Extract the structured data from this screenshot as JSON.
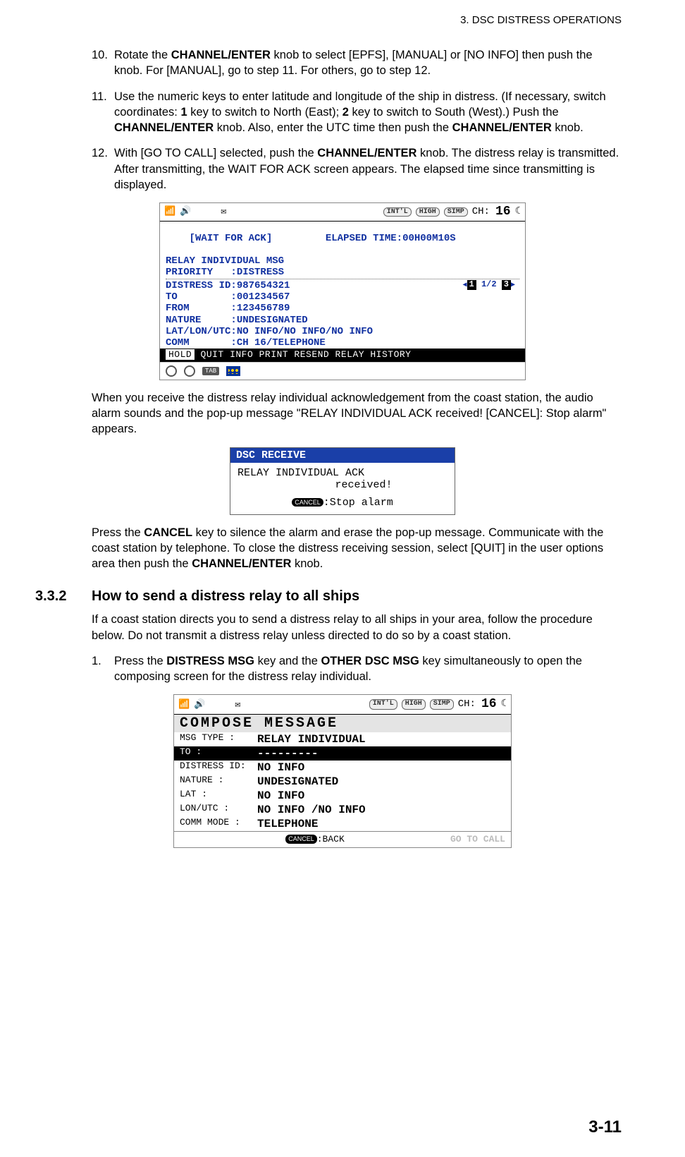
{
  "header": "3.  DSC DISTRESS OPERATIONS",
  "page_number": "3-11",
  "steps_a": [
    {
      "n": "10.",
      "html": "Rotate the <b>CHANNEL/ENTER</b> knob to select [EPFS], [MANUAL] or [NO INFO] then push the knob. For [MANUAL], go to step 11. For others, go to step 12."
    },
    {
      "n": "11.",
      "html": "Use the numeric keys to enter latitude and longitude of the ship in distress. (If necessary, switch coordinates: <b>1</b> key to switch to North (East); <b>2</b> key to switch to South (West).) Push the <b>CHANNEL/ENTER</b> knob. Also, enter the UTC time then push the <b>CHANNEL/ENTER</b> knob."
    },
    {
      "n": "12.",
      "html": "With [GO TO CALL] selected, push the <b>CHANNEL/ENTER</b> knob. The distress relay is transmitted. After transmitting, the WAIT FOR ACK screen appears. The elapsed time since transmitting is displayed."
    }
  ],
  "para_after_dev1": "When you receive the distress relay individual acknowledgement from the coast station, the audio alarm sounds and the pop-up message \"RELAY INDIVIDUAL ACK received! [CANCEL]: Stop alarm\" appears.",
  "para_after_popup": "Press the <b>CANCEL</b> key to silence the alarm and erase the pop-up message. Communicate with the coast station by telephone. To close the distress receiving session, select [QUIT] in the user options area then push the <b>CHANNEL/ENTER</b> knob.",
  "section": {
    "num": "3.3.2",
    "title": "How to send a distress relay to all ships"
  },
  "section_intro": "If a coast station directs you to send a distress relay to all ships in your area, follow the procedure below. Do not transmit a distress relay unless directed to do so by a coast station.",
  "steps_b": [
    {
      "n": "1.",
      "html": "Press the <b>DISTRESS MSG</b> key and the <b>OTHER DSC MSG</b> key simultaneously to open the composing screen for the distress relay individual."
    }
  ],
  "dev1": {
    "badges": [
      "INT'L",
      "HIGH",
      "SIMP"
    ],
    "ch_label": "CH:",
    "ch_value": "16",
    "line1_left": "[WAIT FOR ACK]",
    "line1_right": "ELAPSED TIME:00H00M10S",
    "line2": "RELAY INDIVIDUAL MSG",
    "rows": [
      "PRIORITY   :DISTRESS",
      "DISTRESS ID:987654321",
      "TO         :001234567",
      "FROM       :123456789",
      "NATURE     :UNDESIGNATED",
      "LAT/LON/UTC:NO INFO/NO INFO/NO INFO",
      "COMM       :CH 16/TELEPHONE"
    ],
    "page_ind": "1/2",
    "menu": [
      "HOLD",
      "QUIT",
      "INFO",
      "PRINT",
      "RESEND",
      "RELAY",
      "HISTORY"
    ]
  },
  "popup": {
    "title": "DSC RECEIVE",
    "line1": "RELAY INDIVIDUAL ACK",
    "line2": "received!",
    "cancel_badge": "CANCEL",
    "foot": ":Stop alarm"
  },
  "dev2": {
    "badges": [
      "INT'L",
      "HIGH",
      "SIMP"
    ],
    "ch_label": "CH:",
    "ch_value": "16",
    "title": "COMPOSE MESSAGE",
    "rows": [
      {
        "label": "MSG TYPE  :",
        "val": "RELAY INDIVIDUAL",
        "hl": false
      },
      {
        "label": "TO        :",
        "val": "---------",
        "hl": true
      },
      {
        "label": "DISTRESS ID:",
        "val": "NO INFO",
        "hl": false
      },
      {
        "label": "NATURE    :",
        "val": "UNDESIGNATED",
        "hl": false
      },
      {
        "label": "LAT       :",
        "val": "NO INFO",
        "hl": false
      },
      {
        "label": "LON/UTC   :",
        "val": "NO INFO  /NO INFO",
        "hl": false
      },
      {
        "label": "COMM MODE :",
        "val": "TELEPHONE",
        "hl": false
      }
    ],
    "foot_cancel": "CANCEL",
    "foot_back": ":BACK",
    "foot_goto": "GO TO CALL"
  }
}
